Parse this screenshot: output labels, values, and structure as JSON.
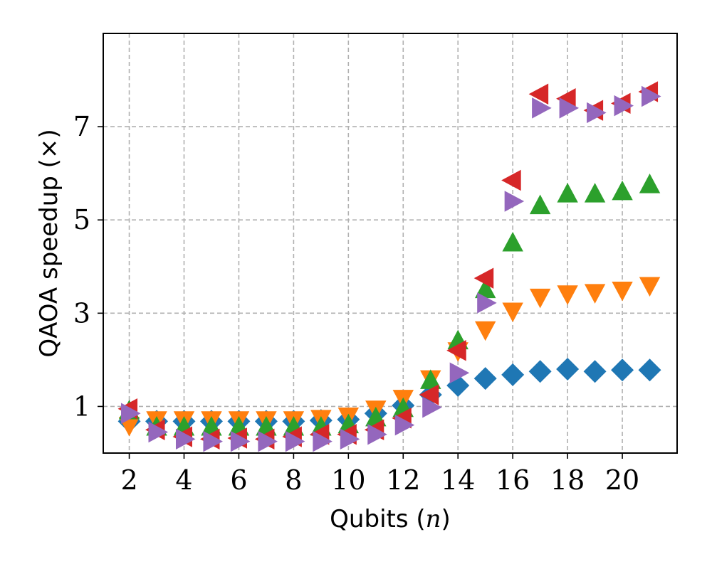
{
  "chart_data": {
    "type": "scatter",
    "xlabel": {
      "text": "Qubits",
      "math": "n"
    },
    "ylabel": {
      "text": "QAOA speedup",
      "math": "×"
    },
    "xlim": [
      1.05,
      22.0
    ],
    "ylim": [
      0.0,
      9.0
    ],
    "xticks": [
      2,
      4,
      6,
      8,
      10,
      12,
      14,
      16,
      18,
      20
    ],
    "yticks": [
      1,
      3,
      5,
      7
    ],
    "grid": true,
    "x": [
      2,
      3,
      4,
      5,
      6,
      7,
      8,
      9,
      10,
      11,
      12,
      13,
      14,
      15,
      16,
      17,
      18,
      19,
      20,
      21
    ],
    "series": [
      {
        "marker": "diamond",
        "color": "#1f77b4",
        "values": [
          0.68,
          0.68,
          0.68,
          0.68,
          0.68,
          0.68,
          0.68,
          0.7,
          0.72,
          0.85,
          1.02,
          1.25,
          1.45,
          1.6,
          1.68,
          1.75,
          1.8,
          1.75,
          1.78,
          1.78
        ]
      },
      {
        "marker": "triangle-down",
        "color": "#ff7f0e",
        "values": [
          0.6,
          0.72,
          0.72,
          0.72,
          0.72,
          0.72,
          0.72,
          0.75,
          0.8,
          0.95,
          1.18,
          1.6,
          2.2,
          2.65,
          3.05,
          3.35,
          3.42,
          3.45,
          3.5,
          3.6
        ]
      },
      {
        "marker": "triangle-up",
        "color": "#2ca02c",
        "values": [
          0.9,
          0.55,
          0.55,
          0.55,
          0.55,
          0.55,
          0.55,
          0.55,
          0.6,
          0.75,
          0.95,
          1.55,
          2.4,
          3.5,
          4.5,
          5.3,
          5.55,
          5.55,
          5.6,
          5.75
        ]
      },
      {
        "marker": "triangle-left",
        "color": "#d62728",
        "values": [
          0.95,
          0.5,
          0.35,
          0.3,
          0.32,
          0.3,
          0.35,
          0.4,
          0.4,
          0.5,
          0.75,
          1.25,
          2.2,
          3.75,
          5.85,
          7.7,
          7.6,
          7.35,
          7.5,
          7.75
        ]
      },
      {
        "marker": "triangle-right",
        "color": "#9467bd",
        "values": [
          0.85,
          0.45,
          0.3,
          0.25,
          0.25,
          0.25,
          0.25,
          0.25,
          0.3,
          0.4,
          0.6,
          0.98,
          1.72,
          3.22,
          5.4,
          7.4,
          7.4,
          7.3,
          7.45,
          7.65
        ]
      }
    ]
  }
}
